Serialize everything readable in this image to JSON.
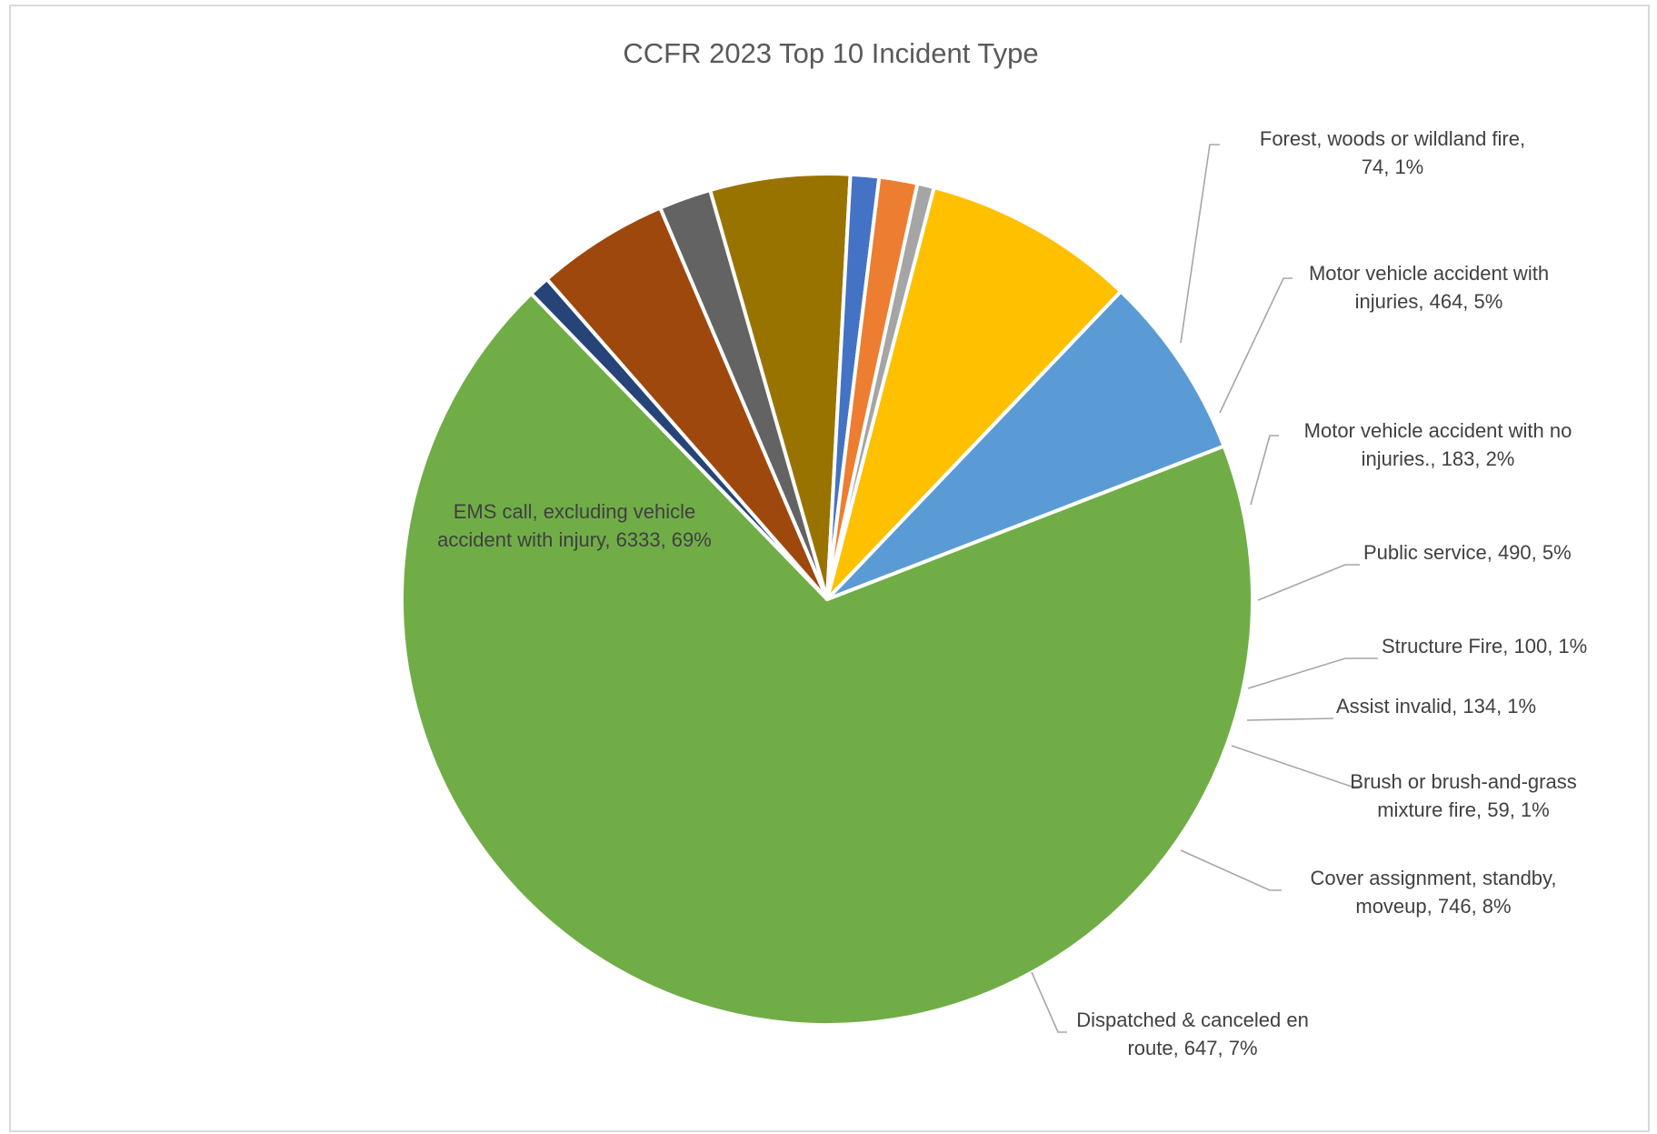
{
  "chart_data": {
    "type": "pie",
    "title": "CCFR 2023 Top 10 Incident Type",
    "slices": [
      {
        "label": "EMS call, excluding vehicle accident with injury",
        "value": 6333,
        "percent": "69%",
        "color": "#70AD47",
        "label_lines": [
          "EMS call, excluding vehicle",
          "accident with injury, 6333, 69%"
        ]
      },
      {
        "label": "Forest, woods or wildland fire",
        "value": 74,
        "percent": "1%",
        "color": "#264478",
        "label_lines": [
          "Forest, woods or wildland fire,",
          "74, 1%"
        ]
      },
      {
        "label": "Motor vehicle accident with injuries",
        "value": 464,
        "percent": "5%",
        "color": "#9E480E",
        "label_lines": [
          "Motor vehicle accident with",
          "injuries, 464, 5%"
        ]
      },
      {
        "label": "Motor vehicle accident with no injuries.",
        "value": 183,
        "percent": "2%",
        "color": "#636363",
        "label_lines": [
          "Motor vehicle accident with no",
          "injuries., 183, 2%"
        ]
      },
      {
        "label": "Public service",
        "value": 490,
        "percent": "5%",
        "color": "#997300",
        "label_lines": [
          "Public service, 490, 5%"
        ]
      },
      {
        "label": "Structure Fire",
        "value": 100,
        "percent": "1%",
        "color": "#4472C4",
        "label_lines": [
          "Structure Fire, 100, 1%"
        ]
      },
      {
        "label": "Assist invalid",
        "value": 134,
        "percent": "1%",
        "color": "#ED7D31",
        "label_lines": [
          "Assist invalid, 134, 1%"
        ]
      },
      {
        "label": "Brush or brush-and-grass mixture fire",
        "value": 59,
        "percent": "1%",
        "color": "#A5A5A5",
        "label_lines": [
          "Brush or brush-and-grass",
          "mixture fire, 59, 1%"
        ]
      },
      {
        "label": "Cover assignment, standby, moveup",
        "value": 746,
        "percent": "8%",
        "color": "#FFC000",
        "label_lines": [
          "Cover assignment, standby,",
          "moveup, 746, 8%"
        ]
      },
      {
        "label": "Dispatched & canceled en route",
        "value": 647,
        "percent": "7%",
        "color": "#5B9BD5",
        "label_lines": [
          "Dispatched & canceled en",
          "route, 647, 7%"
        ]
      }
    ]
  }
}
